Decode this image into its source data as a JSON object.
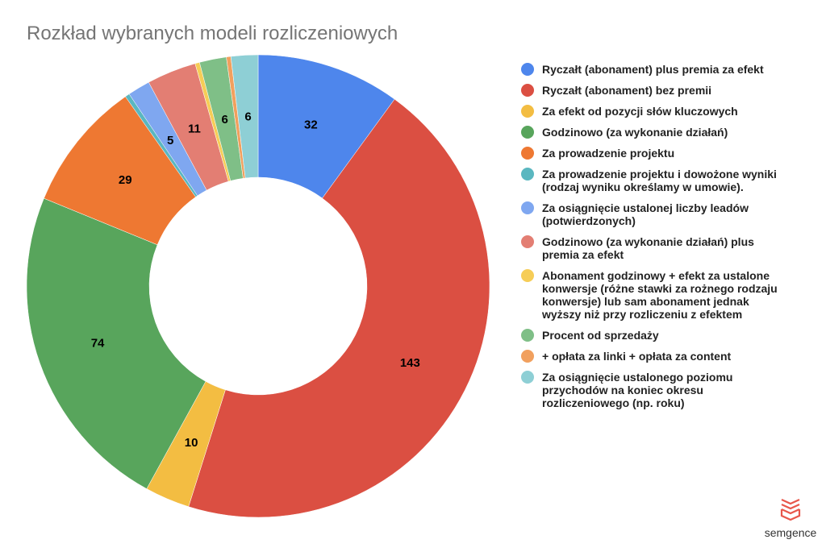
{
  "title": "Rozkład wybranych modeli rozliczeniowych",
  "chart_data": {
    "type": "pie",
    "subtype": "donut",
    "title": "Rozkład wybranych modeli rozliczeniowych",
    "legend_position": "right",
    "categories": [
      "Ryczałt (abonament) plus premia za efekt",
      "Ryczałt (abonament) bez premii",
      "Za efekt od pozycji słów kluczowych",
      "Godzinowo (za wykonanie działań)",
      "Za prowadzenie projektu",
      "Za prowadzenie projektu i dowożone wyniki (rodzaj wyniku określamy w umowie).",
      "Za osiągnięcie ustalonej liczby leadów (potwierdzonych)",
      "Godzinowo (za wykonanie działań) plus premia za efekt",
      "Abonament godzinowy + efekt za ustalone konwersje (różne stawki za rożnego rodzaju konwersje) lub sam abonament jednak wyższy niż przy rozliczeniu z efektem",
      "Procent od sprzedaży",
      "+ opłata za linki + opłata za content",
      "Za osiągnięcie ustalonego poziomu przychodów na koniec okresu rozliczeniowego (np. roku)"
    ],
    "values": [
      32,
      143,
      10,
      74,
      29,
      1,
      5,
      11,
      1,
      6,
      1,
      6
    ],
    "data_labels": [
      "32",
      "143",
      "10",
      "74",
      "29",
      "",
      "5",
      "11",
      "",
      "6",
      "",
      "6"
    ],
    "colors": [
      "#4e86ec",
      "#db4f42",
      "#f3bd42",
      "#58a55c",
      "#ee7832",
      "#5ab7c0",
      "#7fa7f0",
      "#e37e73",
      "#f6cd57",
      "#7fbf87",
      "#f1a05e",
      "#8ecfd5"
    ]
  },
  "legend": {
    "items": [
      {
        "lines": [
          "Ryczałt (abonament) plus premia za efekt"
        ],
        "color": "#4e86ec"
      },
      {
        "lines": [
          "Ryczałt (abonament) bez premii"
        ],
        "color": "#db4f42"
      },
      {
        "lines": [
          "Za efekt od pozycji słów kluczowych"
        ],
        "color": "#f3bd42"
      },
      {
        "lines": [
          "Godzinowo (za wykonanie działań)"
        ],
        "color": "#58a55c"
      },
      {
        "lines": [
          "Za prowadzenie projektu"
        ],
        "color": "#ee7832"
      },
      {
        "lines": [
          "Za prowadzenie projektu i dowożone wyniki",
          "(rodzaj wyniku określamy w umowie)."
        ],
        "color": "#5ab7c0"
      },
      {
        "lines": [
          "Za osiągnięcie ustalonej liczby leadów",
          "(potwierdzonych)"
        ],
        "color": "#7fa7f0"
      },
      {
        "lines": [
          "Godzinowo (za wykonanie działań) plus",
          "premia za efekt"
        ],
        "color": "#e37e73"
      },
      {
        "lines": [
          "Abonament godzinowy + efekt za ustalone",
          "konwersje (różne stawki za rożnego rodzaju",
          "konwersje) lub sam abonament jednak",
          "wyższy niż przy rozliczeniu z efektem"
        ],
        "color": "#f6cd57"
      },
      {
        "lines": [
          "Procent od sprzedaży"
        ],
        "color": "#7fbf87"
      },
      {
        "lines": [
          "+ opłata za linki + opłata za content"
        ],
        "color": "#f1a05e"
      },
      {
        "lines": [
          "Za osiągnięcie ustalonego poziomu",
          "przychodów na koniec okresu",
          "rozliczeniowego (np. roku)"
        ],
        "color": "#8ecfd5"
      }
    ]
  },
  "logo": {
    "text": "semgence",
    "color": "#e8574b"
  }
}
